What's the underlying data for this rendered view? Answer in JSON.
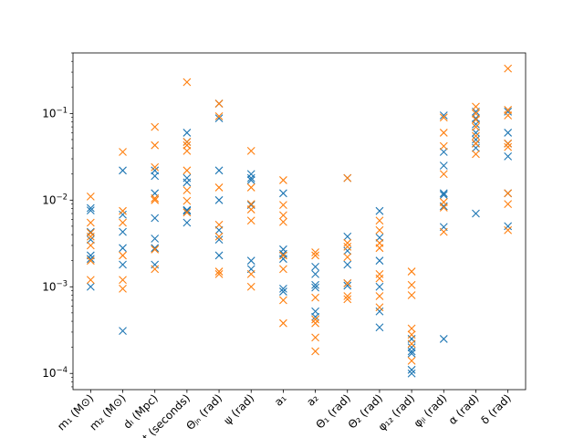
{
  "colors": {
    "series1": "#1f77b4",
    "series2": "#ff7f0e",
    "axes": "#000000",
    "background": "#ffffff"
  },
  "chart_data": {
    "type": "scatter",
    "marker": "x",
    "yscale": "log",
    "ylim": [
      6.5e-05,
      0.5
    ],
    "grid": false,
    "legend": "none",
    "title": "",
    "xlabel": "",
    "ylabel": "",
    "yticks": [
      {
        "value": 0.0001,
        "base": "10",
        "exp": "−4"
      },
      {
        "value": 0.001,
        "base": "10",
        "exp": "−3"
      },
      {
        "value": 0.01,
        "base": "10",
        "exp": "−2"
      },
      {
        "value": 0.1,
        "base": "10",
        "exp": "−1"
      }
    ],
    "categories": [
      "m₁ (M⊙)",
      "m₂ (M⊙)",
      "dₗ (Mpc)",
      "t (seconds)",
      "Θⱼₙ (rad)",
      "ψ (rad)",
      "a₁",
      "a₂",
      "Θ₁ (rad)",
      "Θ₂ (rad)",
      "φ₁₂ (rad)",
      "φⱼₗ (rad)",
      "α (rad)",
      "δ (rad)"
    ],
    "series": [
      {
        "color": "#1f77b4",
        "values": [
          [
            0.0081,
            0.0076,
            0.0043,
            0.0035,
            0.0023,
            0.0021,
            0.001
          ],
          [
            0.022,
            0.0068,
            0.0043,
            0.0028,
            0.0018,
            0.00031
          ],
          [
            0.022,
            0.019,
            0.012,
            0.0062,
            0.0036,
            0.0028,
            0.0018
          ],
          [
            0.06,
            0.047,
            0.018,
            0.016,
            0.0077,
            0.0075,
            0.0055
          ],
          [
            0.13,
            0.088,
            0.022,
            0.01,
            0.0045,
            0.0035,
            0.0023
          ],
          [
            0.02,
            0.018,
            0.017,
            0.0088,
            0.002,
            0.0016
          ],
          [
            0.012,
            0.0027,
            0.0024,
            0.0021,
            0.00095,
            0.00088
          ],
          [
            0.0017,
            0.0014,
            0.00105,
            0.00098,
            0.00052,
            0.00045
          ],
          [
            0.018,
            0.0038,
            0.0026,
            0.0018,
            0.0011,
            0.00103
          ],
          [
            0.0075,
            0.0037,
            0.002,
            0.001,
            0.00052,
            0.00034
          ],
          [
            0.00025,
            0.0002,
            0.00018,
            0.00017,
            0.00011,
            0.0001
          ],
          [
            0.095,
            0.036,
            0.025,
            0.012,
            0.0115,
            0.0085,
            0.0049,
            0.00025
          ],
          [
            0.105,
            0.088,
            0.075,
            0.06,
            0.05,
            0.045,
            0.04,
            0.007
          ],
          [
            0.105,
            0.06,
            0.045,
            0.032,
            0.012,
            0.005
          ]
        ]
      },
      {
        "color": "#ff7f0e",
        "values": [
          [
            0.011,
            0.0055,
            0.0042,
            0.0038,
            0.003,
            0.002,
            0.0012
          ],
          [
            0.036,
            0.0075,
            0.0055,
            0.0023,
            0.0012,
            0.00095
          ],
          [
            0.07,
            0.043,
            0.024,
            0.0105,
            0.01,
            0.0027,
            0.0016
          ],
          [
            0.23,
            0.047,
            0.043,
            0.037,
            0.022,
            0.013,
            0.0098,
            0.0072
          ],
          [
            0.13,
            0.093,
            0.014,
            0.0052,
            0.0038,
            0.0015,
            0.0014
          ],
          [
            0.037,
            0.014,
            0.009,
            0.0078,
            0.0058,
            0.0014,
            0.001
          ],
          [
            0.017,
            0.0088,
            0.0067,
            0.0056,
            0.0023,
            0.0016,
            0.0007,
            0.00038
          ],
          [
            0.0025,
            0.0023,
            0.00075,
            0.00042,
            0.00038,
            0.00026,
            0.00018
          ],
          [
            0.018,
            0.0032,
            0.0029,
            0.0022,
            0.0011,
            0.00078,
            0.00072
          ],
          [
            0.0058,
            0.0045,
            0.0032,
            0.0028,
            0.0014,
            0.00125,
            0.00078,
            0.00058
          ],
          [
            0.0015,
            0.00105,
            0.0008,
            0.00033,
            0.00028,
            0.00022,
            0.00014
          ],
          [
            0.09,
            0.06,
            0.042,
            0.02,
            0.0095,
            0.0082,
            0.0043
          ],
          [
            0.12,
            0.1,
            0.085,
            0.07,
            0.055,
            0.045,
            0.034
          ],
          [
            0.33,
            0.11,
            0.095,
            0.045,
            0.041,
            0.012,
            0.009,
            0.0045
          ]
        ]
      }
    ]
  }
}
